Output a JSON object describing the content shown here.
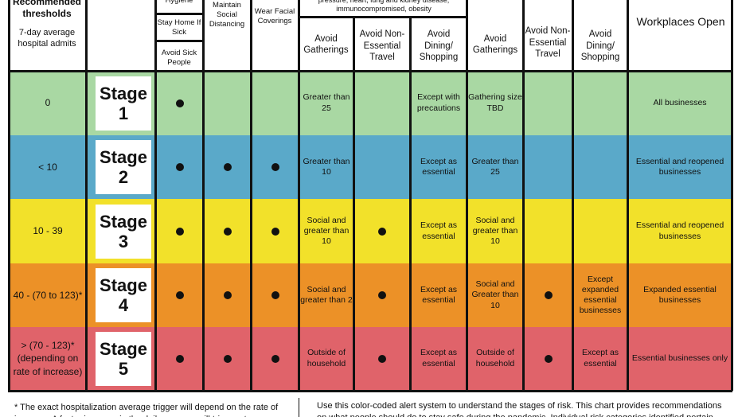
{
  "header": {
    "thresholds_title": "Recommended thresholds",
    "thresholds_sub": "7-day average hospital admits",
    "hygiene": "Hygiene",
    "stay_home": "Stay Home If Sick",
    "avoid_sick": "Avoid Sick People",
    "social_distancing": "Maintain Social Distancing",
    "face_coverings": "Wear Facial Coverings",
    "risk_note": "pressure, heart, lung and kidney disease, immunocompromised, obesity",
    "g1_gatherings": "Avoid Gatherings",
    "g1_travel": "Avoid Non-Essential Travel",
    "g1_dining": "Avoid Dining/ Shopping",
    "g2_gatherings": "Avoid Gatherings",
    "g2_travel": "Avoid Non-Essential Travel",
    "g2_dining": "Avoid Dining/ Shopping",
    "workplaces": "Workplaces Open"
  },
  "colors": {
    "stage1": "#a9d8a3",
    "stage2": "#5aa9c9",
    "stage3": "#f2e12a",
    "stage4": "#ec9127",
    "stage5": "#e0636a"
  },
  "stages": [
    {
      "threshold": "0",
      "stage_word": "Stage",
      "stage_num": "1",
      "g1_gatherings": "Greater than 25",
      "g1_dining": "Except with precautions",
      "g2_gatherings": "Gathering size TBD",
      "workplaces": "All businesses"
    },
    {
      "threshold": "< 10",
      "stage_word": "Stage",
      "stage_num": "2",
      "g1_gatherings": "Greater than 10",
      "g1_dining": "Except as essential",
      "g2_gatherings": "Greater than 25",
      "workplaces": "Essential and reopened businesses"
    },
    {
      "threshold": "10 - 39",
      "stage_word": "Stage",
      "stage_num": "3",
      "g1_gatherings": "Social and greater than 10",
      "g1_dining": "Except as essential",
      "g2_gatherings": "Social and greater than 10",
      "workplaces": "Essential and reopened businesses"
    },
    {
      "threshold": "40 - (70 to 123)*",
      "stage_word": "Stage",
      "stage_num": "4",
      "g1_gatherings": "Social and greater than 2",
      "g1_dining": "Except as essential",
      "g2_gatherings": "Social and Greater than 10",
      "g2_dining": "Except expanded essential businesses",
      "workplaces": "Expanded essential businesses"
    },
    {
      "threshold": "> (70 - 123)* (depending on rate of increase)",
      "stage_word": "Stage",
      "stage_num": "5",
      "g1_gatherings": "Outside of household",
      "g1_dining": "Except as essential",
      "g2_gatherings": "Outside of household",
      "g2_dining": "Except as essential",
      "workplaces": "Essential businesses only"
    }
  ],
  "footer": {
    "left": "* The exact hospitalization average trigger will depend on the rate of increase. A faster increase in the daily average will trigger stage",
    "right": "Use this color-coded alert system to understand the stages of risk. This chart provides recommendations on what people should do to stay safe during the pandemic. Individual risk categories identified pertain"
  }
}
